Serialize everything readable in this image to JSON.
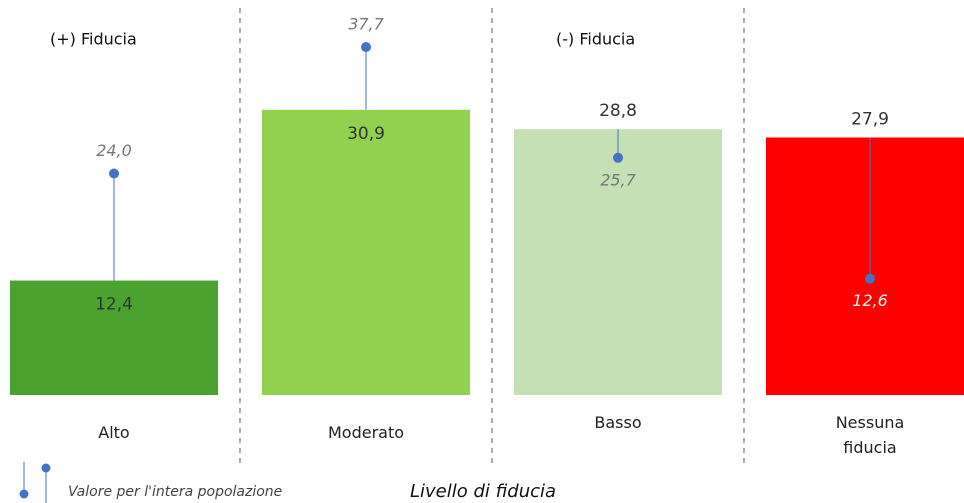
{
  "chart_data": {
    "type": "bar",
    "categories": [
      "Alto",
      "Moderato",
      "Basso",
      "Nessuna fiducia"
    ],
    "values": [
      12.4,
      30.9,
      28.8,
      27.9
    ],
    "value_labels": [
      "12,4",
      "30,9",
      "28,8",
      "27,9"
    ],
    "colors": [
      "#4ca22f",
      "#92d050",
      "#c5e0b4",
      "#ff0000"
    ],
    "series": [
      {
        "name": "Valore per l'intera popolazione",
        "color": "#4472c4",
        "values": [
          24.0,
          37.7,
          25.7,
          12.6
        ],
        "value_labels": [
          "24,0",
          "37,7",
          "25,7",
          "12,6"
        ]
      }
    ],
    "annotations": [
      "(+) Fiducia",
      "(-) Fiducia"
    ],
    "xlabel": "Livello di fiducia"
  }
}
